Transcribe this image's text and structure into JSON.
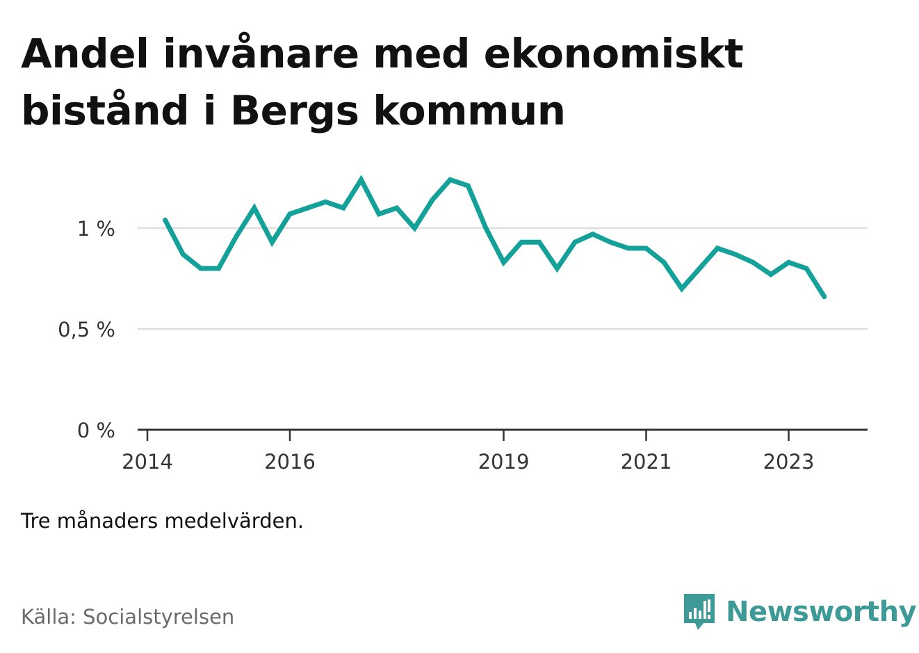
{
  "title": "Andel invånare med ekonomiskt bistånd i Bergs kommun",
  "note": "Tre månaders medelvärden.",
  "source": "Källa: Socialstyrelsen",
  "brand": {
    "name": "Newsworthy",
    "icon": "newsworthy-logo-icon",
    "color": "#3d9a96"
  },
  "colors": {
    "line": "#14a199",
    "grid": "#dddddd",
    "axis": "#333333",
    "text": "#333333"
  },
  "chart_data": {
    "type": "line",
    "title": "",
    "xlabel": "",
    "ylabel": "",
    "ylim": [
      0,
      1.2
    ],
    "xlim": [
      "2014-01",
      "2024-01"
    ],
    "y_ticks": [
      {
        "value": 0,
        "label": "0 %"
      },
      {
        "value": 0.5,
        "label": "0,5 %"
      },
      {
        "value": 1,
        "label": "1 %"
      }
    ],
    "x_ticks": [
      {
        "value": "2014-01",
        "label": "2014"
      },
      {
        "value": "2016-01",
        "label": "2016"
      },
      {
        "value": "2019-01",
        "label": "2019"
      },
      {
        "value": "2021-01",
        "label": "2021"
      },
      {
        "value": "2023-01",
        "label": "2023"
      }
    ],
    "grid": true,
    "series": [
      {
        "x": [
          "2014-04",
          "2014-07",
          "2014-10",
          "2015-01",
          "2015-04",
          "2015-07",
          "2015-10",
          "2016-01",
          "2016-04",
          "2016-07",
          "2016-10",
          "2017-01",
          "2017-04",
          "2017-07",
          "2017-10",
          "2018-01",
          "2018-04",
          "2018-07",
          "2018-10",
          "2019-01",
          "2019-04",
          "2019-07",
          "2019-10",
          "2020-01",
          "2020-04",
          "2020-07",
          "2020-10",
          "2021-01",
          "2021-04",
          "2021-07",
          "2021-10",
          "2022-01",
          "2022-04",
          "2022-07",
          "2022-10",
          "2023-01",
          "2023-04",
          "2023-07"
        ],
        "values": [
          1.04,
          0.87,
          0.8,
          0.8,
          0.96,
          1.1,
          0.93,
          1.07,
          1.1,
          1.13,
          1.1,
          1.24,
          1.07,
          1.1,
          1.0,
          1.14,
          1.24,
          1.21,
          1.0,
          0.83,
          0.93,
          0.93,
          0.8,
          0.93,
          0.97,
          0.93,
          0.9,
          0.9,
          0.83,
          0.7,
          0.8,
          0.9,
          0.87,
          0.83,
          0.77,
          0.83,
          0.8,
          0.66
        ]
      }
    ]
  }
}
